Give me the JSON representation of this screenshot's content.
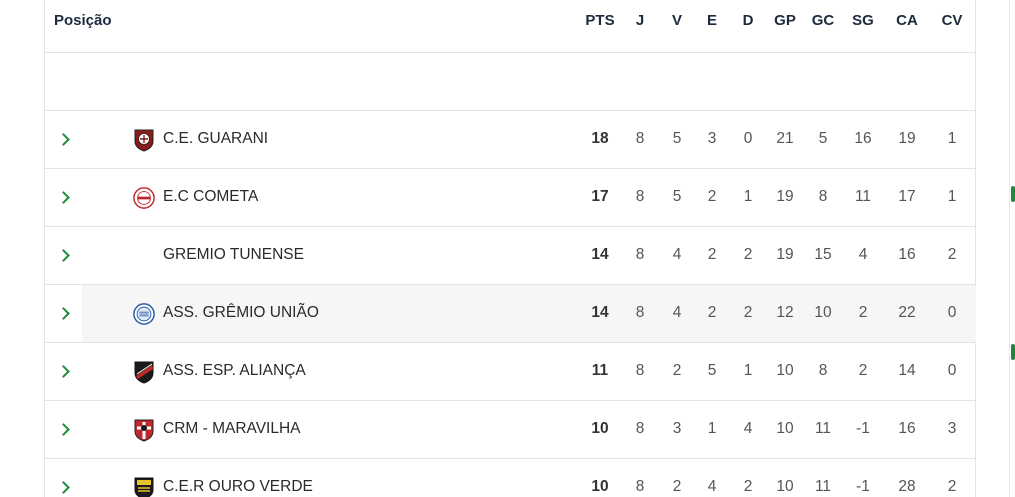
{
  "header": {
    "position_label": "Posição",
    "columns": [
      "PTS",
      "J",
      "V",
      "E",
      "D",
      "GP",
      "GC",
      "SG",
      "CA",
      "CV"
    ]
  },
  "rows": [
    {
      "team": "C.E. GUARANI",
      "crest": "guarani-crest-icon",
      "pts": "18",
      "j": "8",
      "v": "5",
      "e": "3",
      "d": "0",
      "gp": "21",
      "gc": "5",
      "sg": "16",
      "ca": "19",
      "cv": "1"
    },
    {
      "team": "E.C COMETA",
      "crest": "cometa-crest-icon",
      "pts": "17",
      "j": "8",
      "v": "5",
      "e": "2",
      "d": "1",
      "gp": "19",
      "gc": "8",
      "sg": "11",
      "ca": "17",
      "cv": "1"
    },
    {
      "team": "GREMIO TUNENSE",
      "crest": "",
      "pts": "14",
      "j": "8",
      "v": "4",
      "e": "2",
      "d": "2",
      "gp": "19",
      "gc": "15",
      "sg": "4",
      "ca": "16",
      "cv": "2"
    },
    {
      "team": "ASS. GRÊMIO UNIÃO",
      "crest": "uniao-crest-icon",
      "pts": "14",
      "j": "8",
      "v": "4",
      "e": "2",
      "d": "2",
      "gp": "12",
      "gc": "10",
      "sg": "2",
      "ca": "22",
      "cv": "0"
    },
    {
      "team": "ASS. ESP. ALIANÇA",
      "crest": "alianca-crest-icon",
      "pts": "11",
      "j": "8",
      "v": "2",
      "e": "5",
      "d": "1",
      "gp": "10",
      "gc": "8",
      "sg": "2",
      "ca": "14",
      "cv": "0"
    },
    {
      "team": "CRM - MARAVILHA",
      "crest": "maravilha-crest-icon",
      "pts": "10",
      "j": "8",
      "v": "3",
      "e": "1",
      "d": "4",
      "gp": "10",
      "gc": "11",
      "sg": "-1",
      "ca": "16",
      "cv": "3"
    },
    {
      "team": "C.E.R OURO VERDE",
      "crest": "ouro-verde-crest-icon",
      "pts": "10",
      "j": "8",
      "v": "2",
      "e": "4",
      "d": "2",
      "gp": "10",
      "gc": "11",
      "sg": "-1",
      "ca": "28",
      "cv": "2"
    }
  ],
  "colors": {
    "accent_green": "#1f8a3a",
    "header_text": "#1d2b3f",
    "row_shade": "#f6f6f6"
  }
}
